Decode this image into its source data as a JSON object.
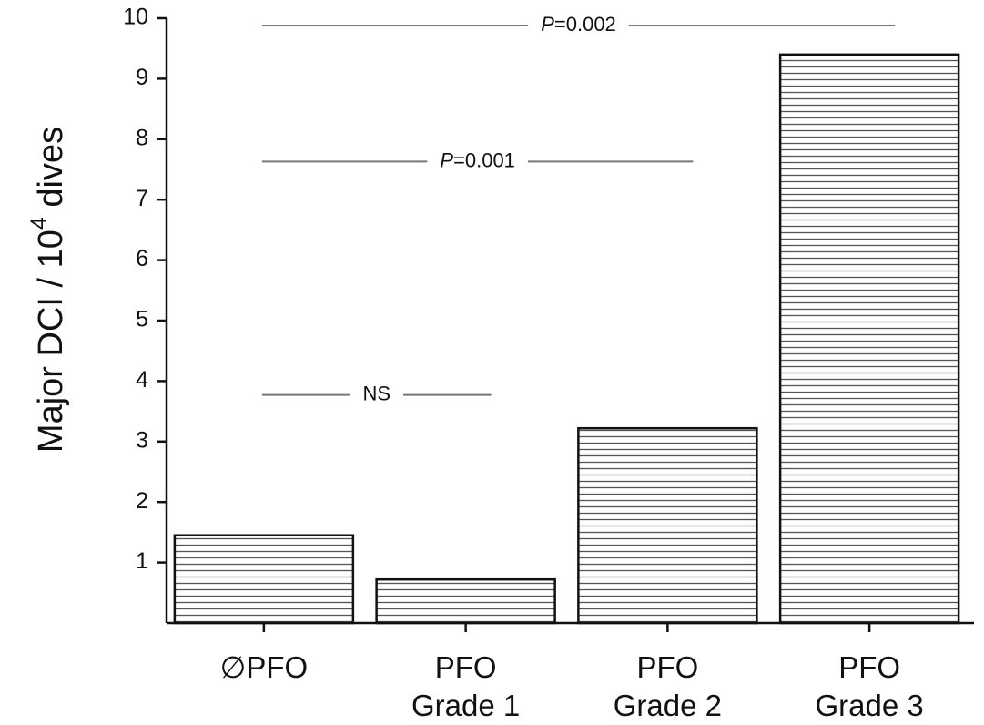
{
  "chart_data": {
    "type": "bar",
    "ylabel": "Major DCI / 10⁴ dives",
    "ylabel_main": "Major DCI / 10",
    "ylabel_sup": "4",
    "ylabel_tail": " dives",
    "categories": [
      [
        "∅PFO"
      ],
      [
        "PFO",
        "Grade 1"
      ],
      [
        "PFO",
        "Grade 2"
      ],
      [
        "PFO",
        "Grade 3"
      ]
    ],
    "values": [
      1.45,
      0.72,
      3.22,
      9.4
    ],
    "ylim": [
      0,
      10
    ],
    "yticks": [
      1,
      2,
      3,
      4,
      5,
      6,
      7,
      8,
      9,
      10
    ],
    "grid": false,
    "bar_fill": "horizontal-hatch",
    "annotations": [
      {
        "p": "P",
        "rest": "=0.002",
        "y": 9.88,
        "from": 0,
        "to": 3
      },
      {
        "p": "P",
        "rest": "=0.001",
        "y": 7.63,
        "from": 0,
        "to": 2
      },
      {
        "p": "",
        "rest": "NS",
        "y": 3.77,
        "from": 0,
        "to": 1
      }
    ]
  },
  "colors": {
    "axis": "#111111",
    "bar_edge": "#111111",
    "hatch": "#555555",
    "annotation_line": "#777777",
    "background": "#ffffff"
  }
}
